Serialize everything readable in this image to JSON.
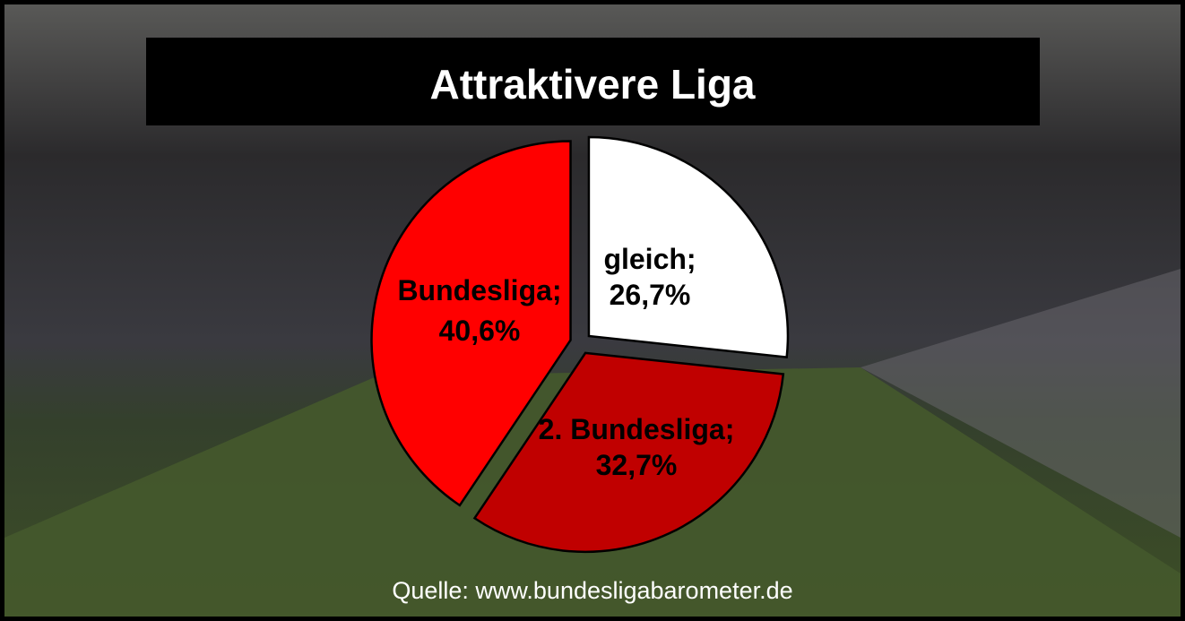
{
  "chart_data": {
    "type": "pie",
    "title": "Attraktivere Liga",
    "source": "Quelle: www.bundesligabarometer.de",
    "slices": [
      {
        "label": "gleich",
        "value": 26.7,
        "display": "26,7%",
        "color": "#ffffff"
      },
      {
        "label": "2. Bundesliga",
        "value": 32.7,
        "display": "32,7%",
        "color": "#c00000"
      },
      {
        "label": "Bundesliga",
        "value": 40.6,
        "display": "40,6%",
        "color": "#ff0000"
      }
    ],
    "start_angle_deg": 0,
    "direction": "clockwise",
    "exploded": true,
    "label_format": "{label}; {display}",
    "background": "stadium photo (darkened)"
  }
}
